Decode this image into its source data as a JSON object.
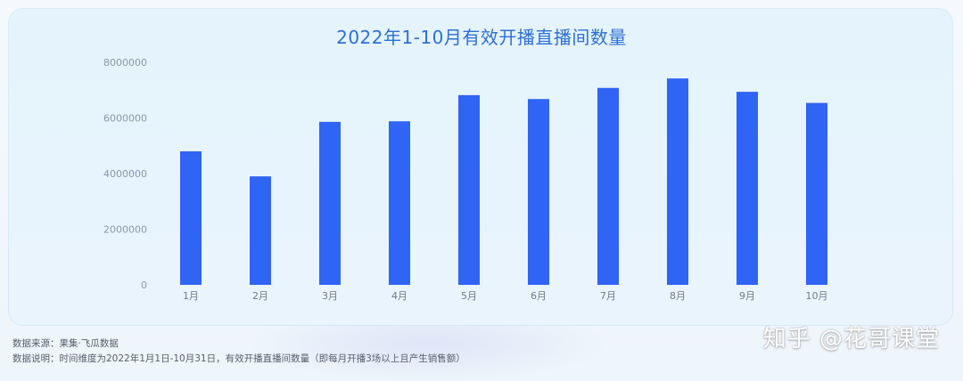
{
  "chart_data": {
    "type": "bar",
    "title": "2022年1-10月有效开播直播间数量",
    "categories": [
      "1月",
      "2月",
      "3月",
      "4月",
      "5月",
      "6月",
      "7月",
      "8月",
      "9月",
      "10月"
    ],
    "values": [
      4800000,
      3900000,
      5860000,
      5880000,
      6820000,
      6680000,
      7080000,
      7420000,
      6940000,
      6540000
    ],
    "ylim": [
      0,
      8000000
    ],
    "yticks": [
      "0",
      "2000000",
      "4000000",
      "6000000",
      "8000000"
    ],
    "ytick_values": [
      0,
      2000000,
      4000000,
      6000000,
      8000000
    ],
    "grid": false,
    "bar_color": "#2f64f5"
  },
  "notes": {
    "source": "数据来源：果集·飞瓜数据",
    "description": "数据说明：时间维度为2022年1月1日-10月31日，有效开播直播间数量（即每月开播3场以上且产生销售额）"
  },
  "watermark": "知乎 @花哥课堂"
}
